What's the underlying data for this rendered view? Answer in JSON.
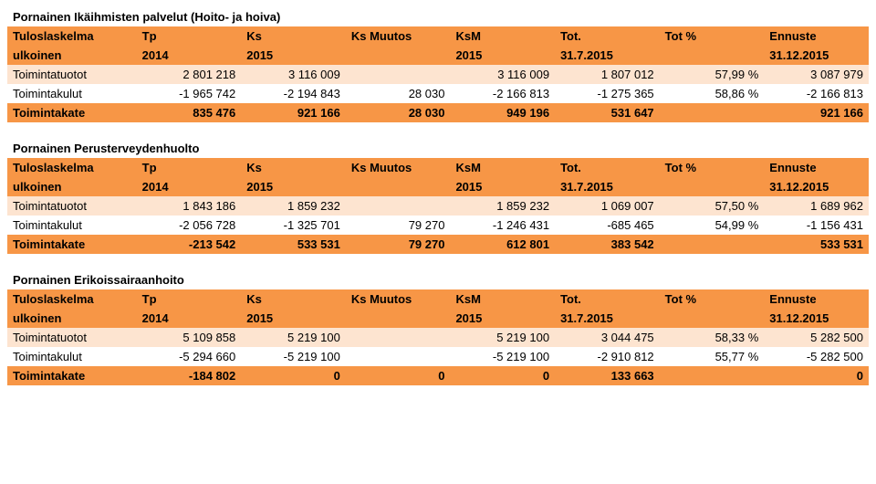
{
  "colors": {
    "header_bg": "#f79646",
    "row_alt_bg": "#fde4d0",
    "row_bg": "#ffffff",
    "text": "#000000"
  },
  "common_headers": {
    "r1": [
      "Tuloslaskelma",
      "Tp",
      "Ks",
      "Ks Muutos",
      "KsM",
      "Tot.",
      "Tot %",
      "Ennuste"
    ],
    "r2": [
      "ulkoinen",
      "2014",
      "2015",
      "",
      "2015",
      "31.7.2015",
      "",
      "31.12.2015"
    ]
  },
  "row_labels": {
    "tuotot": "Toimintatuotot",
    "kulut": "Toimintakulut",
    "kate": "Toimintakate"
  },
  "tables": [
    {
      "title": "Pornainen Ikäihmisten palvelut (Hoito- ja hoiva)",
      "rows": [
        [
          "2 801 218",
          "3 116 009",
          "",
          "3 116 009",
          "1 807 012",
          "57,99 %",
          "3 087 979"
        ],
        [
          "-1 965 742",
          "-2 194 843",
          "28 030",
          "-2 166 813",
          "-1 275 365",
          "58,86 %",
          "-2 166 813"
        ],
        [
          "835 476",
          "921 166",
          "28 030",
          "949 196",
          "531 647",
          "",
          "921 166"
        ]
      ]
    },
    {
      "title": "Pornainen Perusterveydenhuolto",
      "rows": [
        [
          "1 843 186",
          "1 859 232",
          "",
          "1 859 232",
          "1 069 007",
          "57,50 %",
          "1 689 962"
        ],
        [
          "-2 056 728",
          "-1 325 701",
          "79 270",
          "-1 246 431",
          "-685 465",
          "54,99 %",
          "-1 156 431"
        ],
        [
          "-213 542",
          "533 531",
          "79 270",
          "612 801",
          "383 542",
          "",
          "533 531"
        ]
      ]
    },
    {
      "title": "Pornainen Erikoissairaanhoito",
      "rows": [
        [
          "5 109 858",
          "5 219 100",
          "",
          "5 219 100",
          "3 044 475",
          "58,33 %",
          "5 282 500"
        ],
        [
          "-5 294 660",
          "-5 219 100",
          "",
          "-5 219 100",
          "-2 910 812",
          "55,77 %",
          "-5 282 500"
        ],
        [
          "-184 802",
          "0",
          "0",
          "0",
          "133 663",
          "",
          "0"
        ]
      ]
    }
  ]
}
